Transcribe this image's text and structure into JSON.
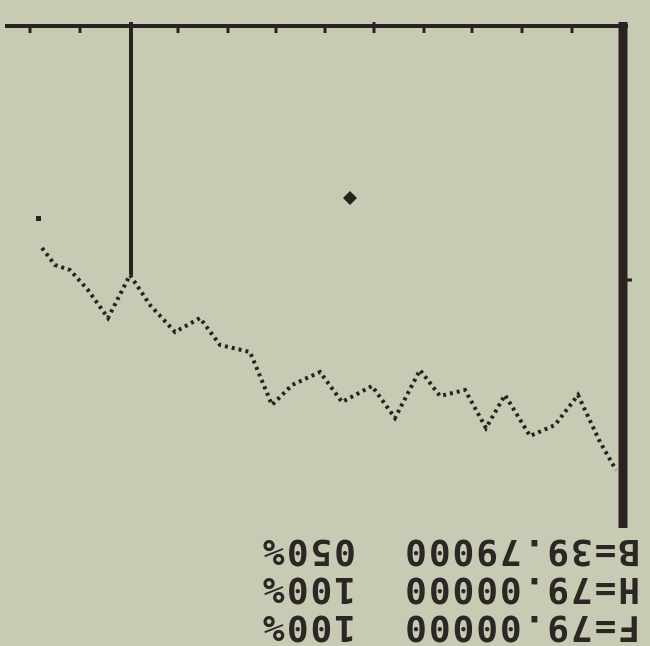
{
  "screen": {
    "readout": {
      "lines": [
        "F=79.00000  100%",
        "H=79.00000  100%",
        "B=39.79000  050%"
      ]
    }
  }
}
